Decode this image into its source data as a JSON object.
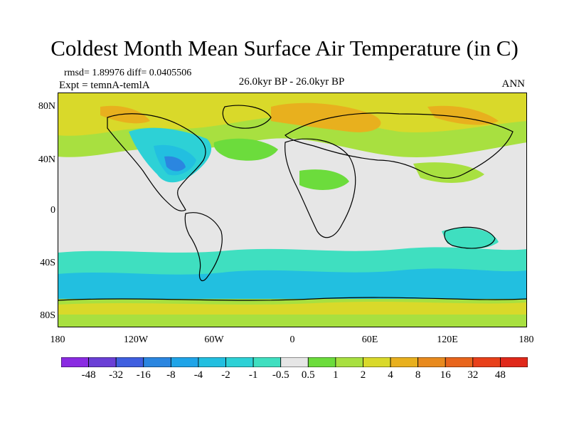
{
  "title": "Coldest Month Mean Surface Air Temperature (in C)",
  "stats": "rmsd= 1.89976 diff= 0.0405506",
  "experiment": "Expt = temnA-temlA",
  "period": "26.0kyr BP - 26.0kyr BP",
  "season": "ANN",
  "lat_labels": [
    "80N",
    "40N",
    "0",
    "40S",
    "80S"
  ],
  "lon_labels": [
    "180",
    "120W",
    "60W",
    "0",
    "60E",
    "120E",
    "180"
  ],
  "colorbar": {
    "labels": [
      "-48",
      "-32",
      "-16",
      "-8",
      "-4",
      "-2",
      "-1",
      "-0.5",
      "0.5",
      "1",
      "2",
      "4",
      "8",
      "16",
      "32",
      "48"
    ],
    "colors": [
      "#8a2be2",
      "#6a3fd6",
      "#3f5fe0",
      "#2b86e0",
      "#1fa4e8",
      "#22bfe0",
      "#2dd1d6",
      "#3fdfc0",
      "#e6e6e6",
      "#6cdc3c",
      "#a8e040",
      "#d9d92a",
      "#e8b01e",
      "#e88a1e",
      "#e8651c",
      "#e8401a",
      "#e0281a"
    ]
  }
}
